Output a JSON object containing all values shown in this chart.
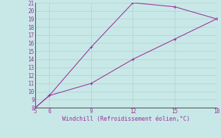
{
  "xlabel": "Windchill (Refroidissement éolien,°C)",
  "line_color": "#993399",
  "bg_color": "#c8e8e8",
  "grid_color": "#b0d0d0",
  "text_color": "#993399",
  "x_upper": [
    5,
    6,
    9,
    12,
    15,
    18
  ],
  "y_upper": [
    8,
    9.5,
    15.5,
    21,
    20.5,
    19
  ],
  "x_lower": [
    5,
    6,
    9,
    12,
    15,
    18
  ],
  "y_lower": [
    8,
    9.5,
    11,
    14,
    16.5,
    19
  ],
  "xlim": [
    5,
    18
  ],
  "ylim": [
    8,
    21
  ],
  "xticks": [
    5,
    6,
    9,
    12,
    15,
    18
  ],
  "yticks": [
    8,
    9,
    10,
    11,
    12,
    13,
    14,
    15,
    16,
    17,
    18,
    19,
    20,
    21
  ]
}
